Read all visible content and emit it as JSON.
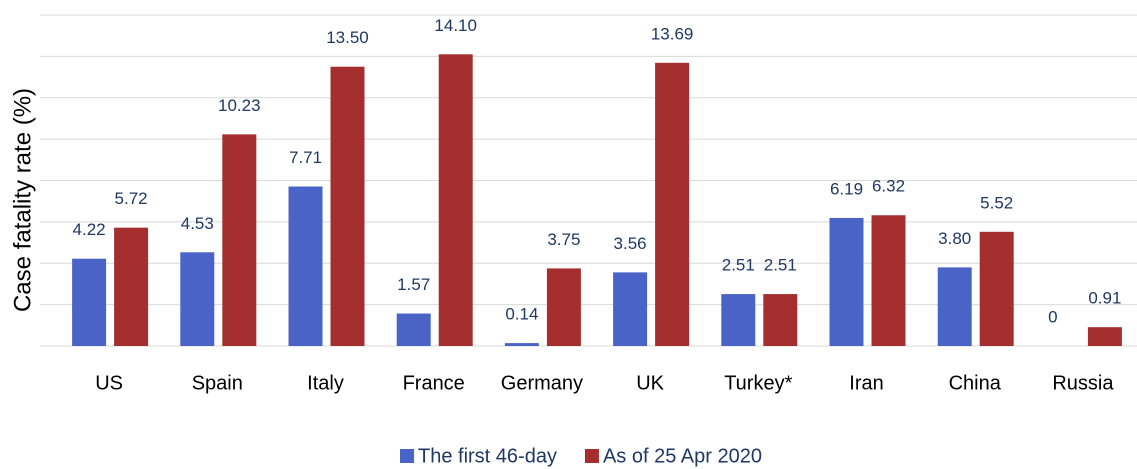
{
  "chart_data": {
    "type": "bar",
    "y_label": "Case fatality rate (%)",
    "categories": [
      "US",
      "Spain",
      "Italy",
      "France",
      "Germany",
      "UK",
      "Turkey*",
      "Iran",
      "China",
      "Russia"
    ],
    "series": [
      {
        "name": "The first 46-day",
        "color": "#4a63c6",
        "values": [
          4.22,
          4.53,
          7.71,
          1.57,
          0.14,
          3.56,
          2.51,
          6.19,
          3.8,
          0
        ],
        "value_labels": [
          "4.22",
          "4.53",
          "7.71",
          "1.57",
          "0.14",
          "3.56",
          "2.51",
          "6.19",
          "3.80",
          "0"
        ]
      },
      {
        "name": "As of 25 Apr 2020",
        "color": "#a52f2f",
        "values": [
          5.72,
          10.23,
          13.5,
          14.1,
          3.75,
          13.69,
          2.51,
          6.32,
          5.52,
          0.91
        ],
        "value_labels": [
          "5.72",
          "10.23",
          "13.50",
          "14.10",
          "3.75",
          "13.69",
          "2.51",
          "6.32",
          "5.52",
          "0.91"
        ]
      }
    ],
    "ylim": [
      0,
      16
    ],
    "yticks": [
      0,
      2,
      4,
      6,
      8,
      10,
      12,
      14,
      16
    ],
    "grid": true,
    "legend": "bottom"
  }
}
